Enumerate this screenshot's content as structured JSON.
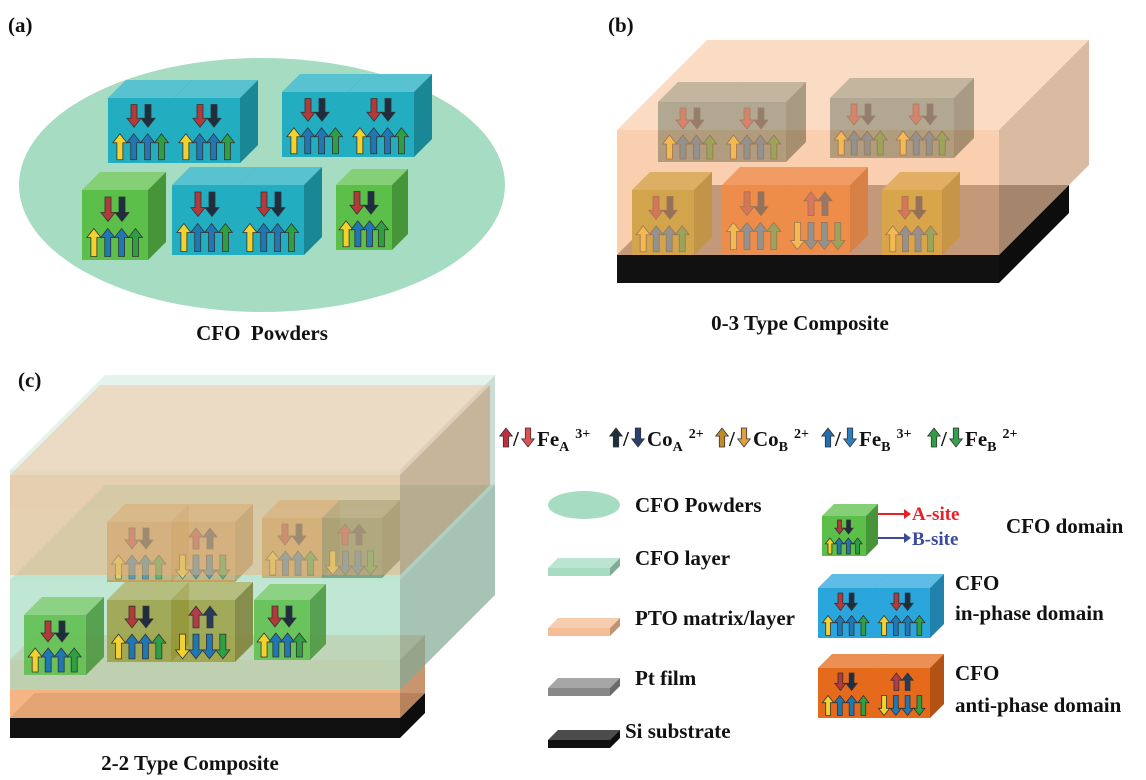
{
  "panels": [
    {
      "label": "(a)",
      "caption": "CFO  Powders"
    },
    {
      "label": "(b)",
      "caption": "0-3 Type Composite"
    },
    {
      "label": "(c)",
      "caption": "2-2 Type Composite"
    }
  ],
  "spin_legend": [
    {
      "separator": "/",
      "element": "Fe",
      "site": "A",
      "charge": "3+"
    },
    {
      "separator": "/",
      "element": "Co",
      "site": "A",
      "charge": "2+"
    },
    {
      "separator": "/",
      "element": "Co",
      "site": "B",
      "charge": "2+"
    },
    {
      "separator": "/",
      "element": "Fe",
      "site": "B",
      "charge": "3+"
    },
    {
      "separator": "/",
      "element": "Fe",
      "site": "B",
      "charge": "2+"
    }
  ],
  "material_legend": [
    "CFO Powders",
    "CFO layer",
    "PTO matrix/layer",
    "Pt film",
    "Si substrate"
  ],
  "domain_legend": {
    "a_site": "A-site",
    "b_site": "B-site",
    "domain": "CFO domain",
    "in_phase": [
      "CFO",
      "in-phase domain"
    ],
    "anti_phase": [
      "CFO",
      "anti-phase domain"
    ]
  }
}
